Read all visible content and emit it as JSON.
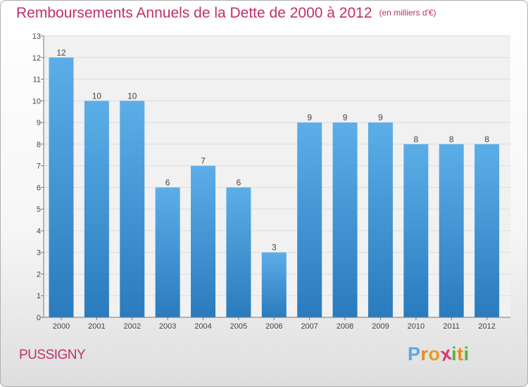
{
  "title": "Remboursements Annuels de la Dette de 2000 à 2012",
  "unit_note": "(en milliers d'€)",
  "place": "PUSSIGNY",
  "logo": {
    "text": "Proxiti",
    "letters": [
      "P",
      "r",
      "o",
      "x",
      "i",
      "t",
      "i"
    ],
    "colors": [
      "#5aa9e0",
      "#e88c1e",
      "#e0a020",
      "#d83a6e",
      "#5bb13a",
      "#e88c1e",
      "#5bb13a"
    ]
  },
  "chart_data": {
    "type": "bar",
    "title": "Remboursements Annuels de la Dette de 2000 à 2012",
    "categories": [
      "2000",
      "2001",
      "2002",
      "2003",
      "2004",
      "2005",
      "2006",
      "2007",
      "2008",
      "2009",
      "2010",
      "2011",
      "2012"
    ],
    "values": [
      12,
      10,
      10,
      6,
      7,
      6,
      3,
      9,
      9,
      9,
      8,
      8,
      8
    ],
    "data_labels": [
      "12",
      "10",
      "10",
      "6",
      "7",
      "6",
      "3",
      "9",
      "9",
      "9",
      "8",
      "8",
      "8"
    ],
    "y_ticks": [
      "0",
      "1",
      "2",
      "3",
      "4",
      "5",
      "6",
      "7",
      "8",
      "9",
      "10",
      "11",
      "12",
      "13"
    ],
    "ylim": [
      0,
      13
    ],
    "xlabel": "",
    "ylabel": "",
    "grid": true,
    "legend": "none",
    "bar_color": "#3d8fd4"
  }
}
